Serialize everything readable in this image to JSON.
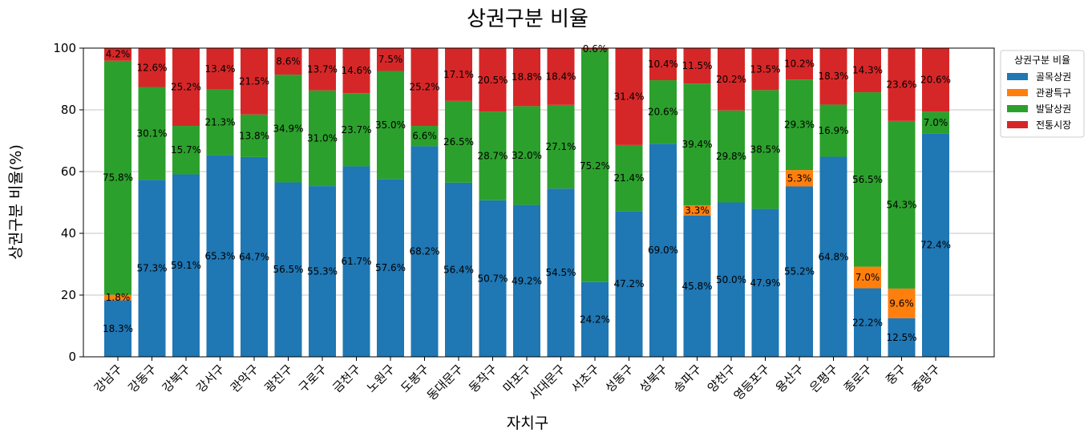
{
  "chart_data": {
    "type": "bar",
    "stacked": true,
    "title": "상권구분 비율",
    "xlabel": "자치구",
    "ylabel": "상권구분 비율(%)",
    "ylim": [
      0,
      100
    ],
    "yticks": [
      0,
      20,
      40,
      60,
      80,
      100
    ],
    "grid": "y",
    "legend": {
      "title": "상권구분 비율",
      "placement": "outside-top-right"
    },
    "categories": [
      "강남구",
      "강동구",
      "강북구",
      "강서구",
      "관악구",
      "광진구",
      "구로구",
      "금천구",
      "노원구",
      "도봉구",
      "동대문구",
      "동작구",
      "마포구",
      "서대문구",
      "서초구",
      "성동구",
      "성북구",
      "송파구",
      "양천구",
      "영등포구",
      "용산구",
      "은평구",
      "종로구",
      "중구",
      "중랑구"
    ],
    "series": [
      {
        "name": "골목상권",
        "color": "#1f77b4",
        "values": [
          18.3,
          57.3,
          59.1,
          65.3,
          64.7,
          56.5,
          55.3,
          61.7,
          57.6,
          68.2,
          56.4,
          50.7,
          49.2,
          54.5,
          24.2,
          47.2,
          69.0,
          45.8,
          50.0,
          47.9,
          55.2,
          64.8,
          22.2,
          12.5,
          72.4
        ]
      },
      {
        "name": "관광특구",
        "color": "#ff7f0e",
        "values": [
          1.8,
          0,
          0,
          0,
          0,
          0,
          0,
          0,
          0,
          0,
          0,
          0,
          0,
          0,
          0,
          0,
          0,
          3.3,
          0,
          0,
          5.3,
          0,
          7.0,
          9.6,
          0
        ]
      },
      {
        "name": "발달상권",
        "color": "#2ca02c",
        "values": [
          75.8,
          30.1,
          15.7,
          21.3,
          13.8,
          34.9,
          31.0,
          23.7,
          35.0,
          6.6,
          26.5,
          28.7,
          32.0,
          27.1,
          75.2,
          21.4,
          20.6,
          39.4,
          29.8,
          38.5,
          29.3,
          16.9,
          56.5,
          54.3,
          7.0
        ]
      },
      {
        "name": "전통시장",
        "color": "#d62728",
        "values": [
          4.2,
          12.6,
          25.2,
          13.4,
          21.5,
          8.6,
          13.7,
          14.6,
          7.5,
          25.2,
          17.1,
          20.5,
          18.8,
          18.4,
          0.6,
          31.4,
          10.4,
          11.5,
          20.2,
          13.5,
          10.2,
          18.3,
          14.3,
          23.6,
          20.6
        ]
      }
    ]
  }
}
